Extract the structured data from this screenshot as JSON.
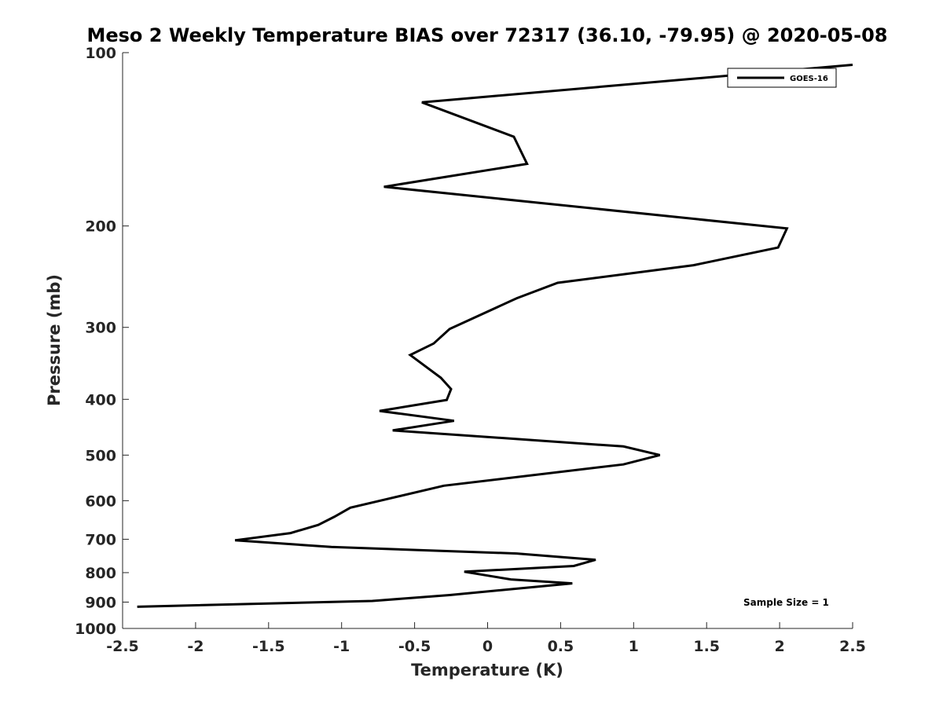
{
  "chart_data": {
    "type": "line",
    "title": "Meso 2 Weekly Temperature BIAS over 72317 (36.10, -79.95) @ 2020-05-08",
    "xlabel": "Temperature (K)",
    "ylabel": "Pressure (mb)",
    "xlim": [
      -2.5,
      2.5
    ],
    "ylim": [
      100,
      1000
    ],
    "y_scale": "log",
    "y_reversed": true,
    "grid": false,
    "legend_placement": "top-right",
    "x_ticks": [
      -2.5,
      -2,
      -1.5,
      -1,
      -0.5,
      0,
      0.5,
      1,
      1.5,
      2,
      2.5
    ],
    "x_tick_labels": [
      "-2.5",
      "-2",
      "-1.5",
      "-1",
      "-0.5",
      "0",
      "0.5",
      "1",
      "1.5",
      "2",
      "2.5"
    ],
    "y_ticks": [
      100,
      200,
      300,
      400,
      500,
      600,
      700,
      800,
      900,
      1000
    ],
    "y_tick_labels": [
      "100",
      "200",
      "300",
      "400",
      "500",
      "600",
      "700",
      "800",
      "900",
      "1000"
    ],
    "series": [
      {
        "name": "GOES-16",
        "color": "#000000",
        "points": [
          [
            2.5,
            105
          ],
          [
            -0.45,
            122
          ],
          [
            0.18,
            140
          ],
          [
            0.27,
            156
          ],
          [
            -0.71,
            171
          ],
          [
            2.05,
            202
          ],
          [
            1.99,
            218
          ],
          [
            1.41,
            234
          ],
          [
            0.48,
            251
          ],
          [
            0.2,
            267
          ],
          [
            -0.26,
            302
          ],
          [
            -0.37,
            320
          ],
          [
            -0.53,
            335
          ],
          [
            -0.32,
            367
          ],
          [
            -0.25,
            384
          ],
          [
            -0.28,
            401
          ],
          [
            -0.74,
            419
          ],
          [
            -0.23,
            436
          ],
          [
            -0.65,
            453
          ],
          [
            0.93,
            483
          ],
          [
            1.18,
            500
          ],
          [
            0.93,
            519
          ],
          [
            -0.3,
            565
          ],
          [
            -0.94,
            617
          ],
          [
            -1.05,
            640
          ],
          [
            -1.16,
            661
          ],
          [
            -1.35,
            683
          ],
          [
            -1.73,
            703
          ],
          [
            -1.07,
            722
          ],
          [
            0.2,
            741
          ],
          [
            0.74,
            760
          ],
          [
            0.59,
            779
          ],
          [
            -0.16,
            797
          ],
          [
            0.16,
            822
          ],
          [
            0.58,
            835
          ],
          [
            -0.26,
            875
          ],
          [
            -0.79,
            896
          ],
          [
            -2.4,
            917
          ]
        ]
      }
    ],
    "annotations": [
      {
        "text": "Sample Size = 1"
      }
    ]
  }
}
